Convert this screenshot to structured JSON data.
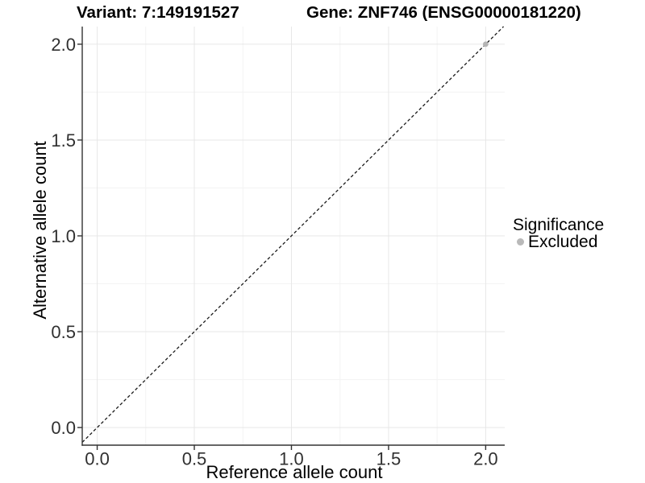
{
  "titles": {
    "variant": "Variant: 7:149191527",
    "gene": "Gene: ZNF746 (ENSG00000181220)"
  },
  "axes": {
    "x_label": "Reference allele count",
    "y_label": "Alternative allele count"
  },
  "legend": {
    "title": "Significance",
    "items": [
      {
        "label": "Excluded",
        "color": "#b9b9b9"
      }
    ]
  },
  "colors": {
    "background": "#ffffff",
    "axis_line": "#333333",
    "tick_mark": "#333333",
    "grid_major": "#e7e7e7",
    "grid_minor": "#f3f3f3",
    "tick_text": "#303030",
    "identity_line": "#1a1a1a",
    "point": "#b5b5b5"
  },
  "chart_data": {
    "type": "scatter",
    "title": "Variant: 7:149191527 | Gene: ZNF746 (ENSG00000181220)",
    "xlabel": "Reference allele count",
    "ylabel": "Alternative allele count",
    "xlim": [
      -0.077,
      2.098
    ],
    "ylim": [
      -0.092,
      2.092
    ],
    "x_ticks": [
      0.0,
      0.5,
      1.0,
      1.5,
      2.0
    ],
    "y_ticks": [
      0.0,
      0.5,
      1.0,
      1.5,
      2.0
    ],
    "x_tick_labels": [
      "0.0",
      "0.5",
      "1.0",
      "1.5",
      "2.0"
    ],
    "y_tick_labels": [
      "0.0",
      "0.5",
      "1.0",
      "1.5",
      "2.0"
    ],
    "x_minor_ticks": [
      0.25,
      0.75,
      1.25,
      1.75
    ],
    "y_minor_ticks": [
      0.25,
      0.75,
      1.25,
      1.75
    ],
    "grid": true,
    "legend_position": "right",
    "reference_line": {
      "type": "identity",
      "slope": 1,
      "intercept": 0,
      "style": "dashed"
    },
    "series": [
      {
        "name": "Excluded",
        "color": "#b5b5b5",
        "points": [
          {
            "x": 2.0,
            "y": 2.0
          }
        ]
      }
    ]
  }
}
